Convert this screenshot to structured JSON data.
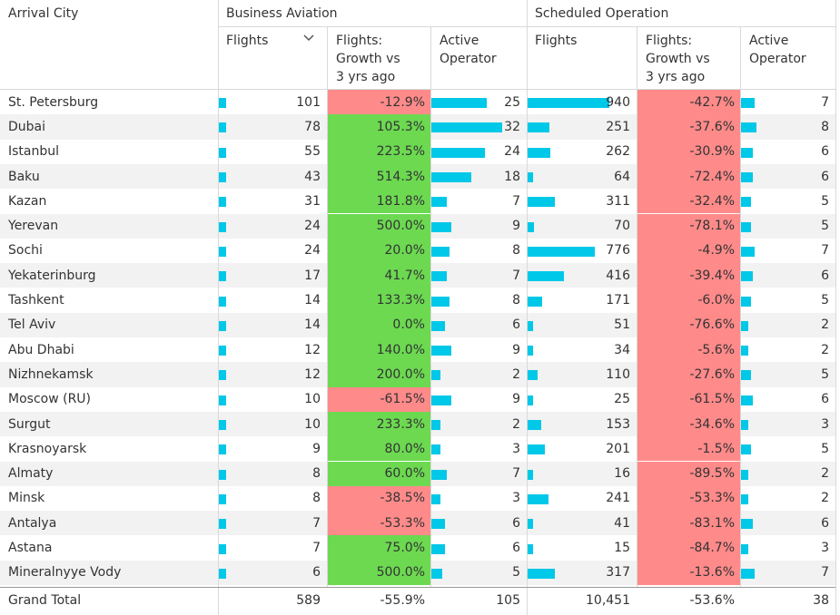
{
  "header": {
    "row_label": "Arrival City",
    "groups": [
      "Business Aviation",
      "Scheduled Operation"
    ],
    "columns": [
      "Flights",
      "Flights:\nGrowth vs\n3 yrs ago",
      "Active\nOperator",
      "Flights",
      "Flights:\nGrowth vs\n3 yrs ago",
      "Active\nOperator"
    ]
  },
  "colors": {
    "bar": "#00c8e8",
    "positive": "#6cd951",
    "negative": "#ff8a8a",
    "stripe": "#f2f2f2"
  },
  "rows": [
    {
      "city": "St. Petersburg",
      "ba_flights": "101",
      "ba_growth": "-12.9%",
      "ba_ops": "25",
      "so_flights": "940",
      "so_growth": "-42.7%",
      "so_ops": "7"
    },
    {
      "city": "Dubai",
      "ba_flights": "78",
      "ba_growth": "105.3%",
      "ba_ops": "32",
      "so_flights": "251",
      "so_growth": "-37.6%",
      "so_ops": "8"
    },
    {
      "city": "Istanbul",
      "ba_flights": "55",
      "ba_growth": "223.5%",
      "ba_ops": "24",
      "so_flights": "262",
      "so_growth": "-30.9%",
      "so_ops": "6"
    },
    {
      "city": "Baku",
      "ba_flights": "43",
      "ba_growth": "514.3%",
      "ba_ops": "18",
      "so_flights": "64",
      "so_growth": "-72.4%",
      "so_ops": "6"
    },
    {
      "city": "Kazan",
      "ba_flights": "31",
      "ba_growth": "181.8%",
      "ba_ops": "7",
      "so_flights": "311",
      "so_growth": "-32.4%",
      "so_ops": "5"
    },
    {
      "city": "Yerevan",
      "ba_flights": "24",
      "ba_growth": "500.0%",
      "ba_ops": "9",
      "so_flights": "70",
      "so_growth": "-78.1%",
      "so_ops": "5"
    },
    {
      "city": "Sochi",
      "ba_flights": "24",
      "ba_growth": "20.0%",
      "ba_ops": "8",
      "so_flights": "776",
      "so_growth": "-4.9%",
      "so_ops": "7"
    },
    {
      "city": "Yekaterinburg",
      "ba_flights": "17",
      "ba_growth": "41.7%",
      "ba_ops": "7",
      "so_flights": "416",
      "so_growth": "-39.4%",
      "so_ops": "6"
    },
    {
      "city": "Tashkent",
      "ba_flights": "14",
      "ba_growth": "133.3%",
      "ba_ops": "8",
      "so_flights": "171",
      "so_growth": "-6.0%",
      "so_ops": "5"
    },
    {
      "city": "Tel Aviv",
      "ba_flights": "14",
      "ba_growth": "0.0%",
      "ba_ops": "6",
      "so_flights": "51",
      "so_growth": "-76.6%",
      "so_ops": "2"
    },
    {
      "city": "Abu Dhabi",
      "ba_flights": "12",
      "ba_growth": "140.0%",
      "ba_ops": "9",
      "so_flights": "34",
      "so_growth": "-5.6%",
      "so_ops": "2"
    },
    {
      "city": "Nizhnekamsk",
      "ba_flights": "12",
      "ba_growth": "200.0%",
      "ba_ops": "2",
      "so_flights": "110",
      "so_growth": "-27.6%",
      "so_ops": "5"
    },
    {
      "city": "Moscow (RU)",
      "ba_flights": "10",
      "ba_growth": "-61.5%",
      "ba_ops": "9",
      "so_flights": "25",
      "so_growth": "-61.5%",
      "so_ops": "6"
    },
    {
      "city": "Surgut",
      "ba_flights": "10",
      "ba_growth": "233.3%",
      "ba_ops": "2",
      "so_flights": "153",
      "so_growth": "-34.6%",
      "so_ops": "3"
    },
    {
      "city": "Krasnoyarsk",
      "ba_flights": "9",
      "ba_growth": "80.0%",
      "ba_ops": "3",
      "so_flights": "201",
      "so_growth": "-1.5%",
      "so_ops": "5"
    },
    {
      "city": "Almaty",
      "ba_flights": "8",
      "ba_growth": "60.0%",
      "ba_ops": "7",
      "so_flights": "16",
      "so_growth": "-89.5%",
      "so_ops": "2"
    },
    {
      "city": "Minsk",
      "ba_flights": "8",
      "ba_growth": "-38.5%",
      "ba_ops": "3",
      "so_flights": "241",
      "so_growth": "-53.3%",
      "so_ops": "2"
    },
    {
      "city": "Antalya",
      "ba_flights": "7",
      "ba_growth": "-53.3%",
      "ba_ops": "6",
      "so_flights": "41",
      "so_growth": "-83.1%",
      "so_ops": "6"
    },
    {
      "city": "Astana",
      "ba_flights": "7",
      "ba_growth": "75.0%",
      "ba_ops": "6",
      "so_flights": "15",
      "so_growth": "-84.7%",
      "so_ops": "3"
    },
    {
      "city": "Mineralnyye Vody",
      "ba_flights": "6",
      "ba_growth": "500.0%",
      "ba_ops": "5",
      "so_flights": "317",
      "so_growth": "-13.6%",
      "so_ops": "7"
    }
  ],
  "total": {
    "city": "Grand Total",
    "ba_flights": "589",
    "ba_growth": "-55.9%",
    "ba_ops": "105",
    "so_flights": "10,451",
    "so_growth": "-53.6%",
    "so_ops": "38"
  }
}
